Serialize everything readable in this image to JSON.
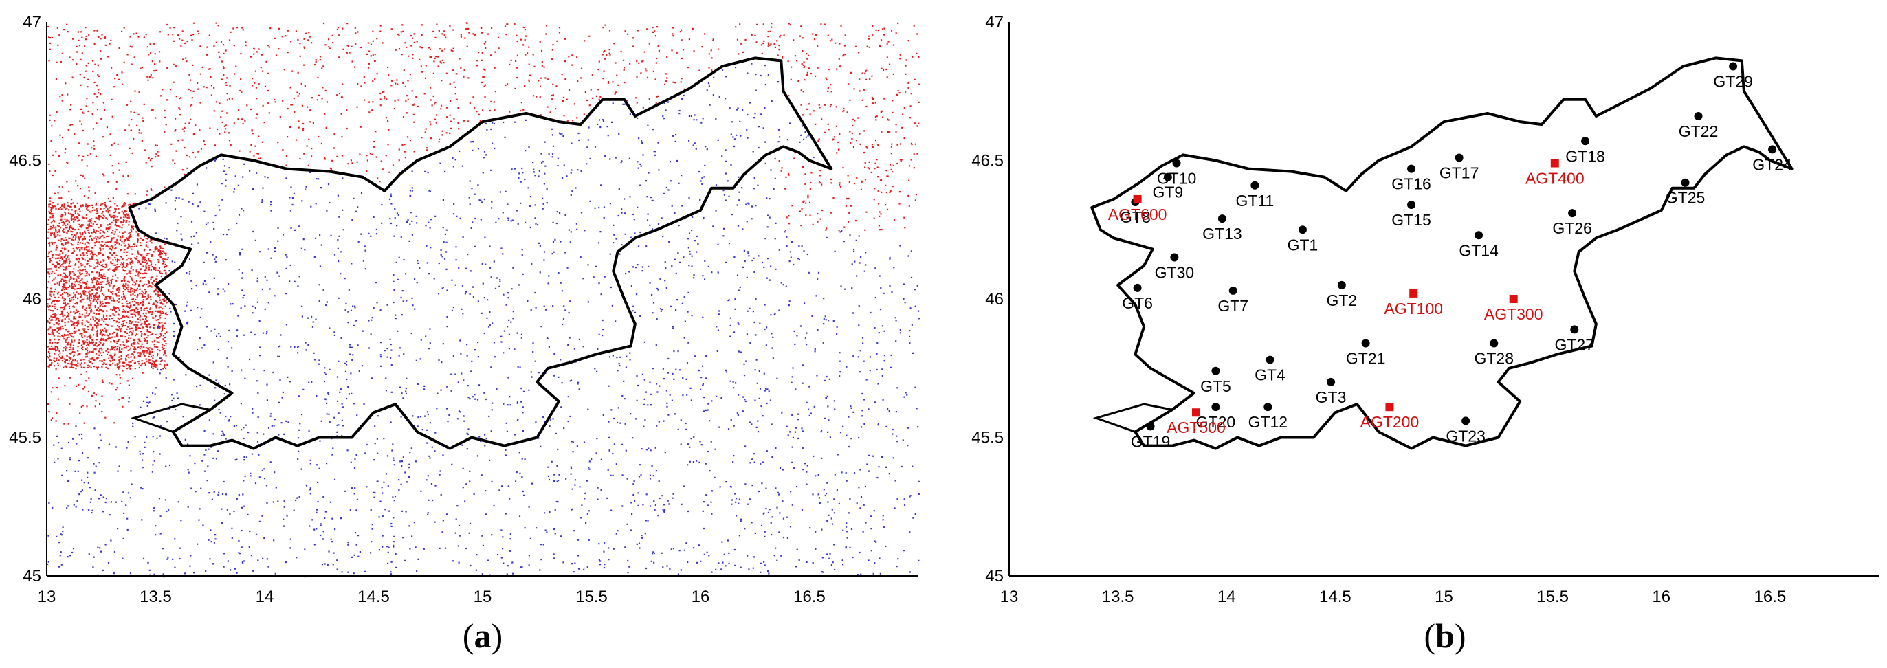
{
  "colors": {
    "red_points": "#e02020",
    "blue_points": "#3a3acc",
    "border": "#000000",
    "gt_marker": "#000000",
    "agt_marker": "#e01010",
    "agt_label": "#d01010"
  },
  "chart_data": [
    {
      "type": "scatter",
      "panel_label": "a",
      "xlim": [
        13,
        17
      ],
      "ylim": [
        45,
        47
      ],
      "x_ticks": [
        "13",
        "13.5",
        "14",
        "14.5",
        "15",
        "15.5",
        "16",
        "16.5"
      ],
      "y_ticks": [
        "45",
        "45.5",
        "46",
        "46.5",
        "47"
      ],
      "grid": false,
      "series": [
        {
          "color": "#e02020",
          "description_region": "outside Slovenia border (dense grid points)"
        },
        {
          "color": "#3a3acc",
          "description_region": "inside / south of Slovenia border (grid points)"
        }
      ]
    },
    {
      "type": "scatter",
      "panel_label": "b",
      "xlim": [
        13,
        17
      ],
      "ylim": [
        45,
        47
      ],
      "x_ticks": [
        "13",
        "13.5",
        "14",
        "14.5",
        "15",
        "15.5",
        "16",
        "16.5"
      ],
      "y_ticks": [
        "45",
        "45.5",
        "46",
        "46.5",
        "47"
      ],
      "grid": false,
      "series": [
        {
          "color": "#000000",
          "points": [
            {
              "label": "GT1",
              "x": 14.35,
              "y": 46.25
            },
            {
              "label": "GT2",
              "x": 14.53,
              "y": 46.05
            },
            {
              "label": "GT3",
              "x": 14.48,
              "y": 45.7
            },
            {
              "label": "GT4",
              "x": 14.2,
              "y": 45.78
            },
            {
              "label": "GT5",
              "x": 13.95,
              "y": 45.74
            },
            {
              "label": "GT6",
              "x": 13.59,
              "y": 46.04
            },
            {
              "label": "GT7",
              "x": 14.03,
              "y": 46.03
            },
            {
              "label": "GT8",
              "x": 13.58,
              "y": 46.35
            },
            {
              "label": "GT9",
              "x": 13.73,
              "y": 46.44
            },
            {
              "label": "GT10",
              "x": 13.77,
              "y": 46.49
            },
            {
              "label": "GT11",
              "x": 14.13,
              "y": 46.41
            },
            {
              "label": "GT12",
              "x": 14.19,
              "y": 45.61
            },
            {
              "label": "GT13",
              "x": 13.98,
              "y": 46.29
            },
            {
              "label": "GT14",
              "x": 15.16,
              "y": 46.23
            },
            {
              "label": "GT15",
              "x": 14.85,
              "y": 46.34
            },
            {
              "label": "GT16",
              "x": 14.85,
              "y": 46.47
            },
            {
              "label": "GT17",
              "x": 15.07,
              "y": 46.51
            },
            {
              "label": "GT18",
              "x": 15.65,
              "y": 46.57
            },
            {
              "label": "GT19",
              "x": 13.65,
              "y": 45.54
            },
            {
              "label": "GT20",
              "x": 13.95,
              "y": 45.61
            },
            {
              "label": "GT21",
              "x": 14.64,
              "y": 45.84
            },
            {
              "label": "GT22",
              "x": 16.17,
              "y": 46.66
            },
            {
              "label": "GT23",
              "x": 15.1,
              "y": 45.56
            },
            {
              "label": "GT24",
              "x": 16.51,
              "y": 46.54
            },
            {
              "label": "GT25",
              "x": 16.11,
              "y": 46.42
            },
            {
              "label": "GT26",
              "x": 15.59,
              "y": 46.31
            },
            {
              "label": "GT27",
              "x": 15.6,
              "y": 45.89
            },
            {
              "label": "GT28",
              "x": 15.23,
              "y": 45.84
            },
            {
              "label": "GT29",
              "x": 16.33,
              "y": 46.84
            },
            {
              "label": "GT30",
              "x": 13.76,
              "y": 46.15
            }
          ]
        },
        {
          "color": "#e01010",
          "points": [
            {
              "label": "AGT100",
              "x": 14.86,
              "y": 46.02
            },
            {
              "label": "AGT200",
              "x": 14.75,
              "y": 45.61
            },
            {
              "label": "AGT300",
              "x": 15.32,
              "y": 46.0
            },
            {
              "label": "AGT400",
              "x": 15.51,
              "y": 46.49
            },
            {
              "label": "AGT500",
              "x": 13.86,
              "y": 45.59
            },
            {
              "label": "AGT600",
              "x": 13.59,
              "y": 46.36
            }
          ]
        }
      ]
    }
  ]
}
